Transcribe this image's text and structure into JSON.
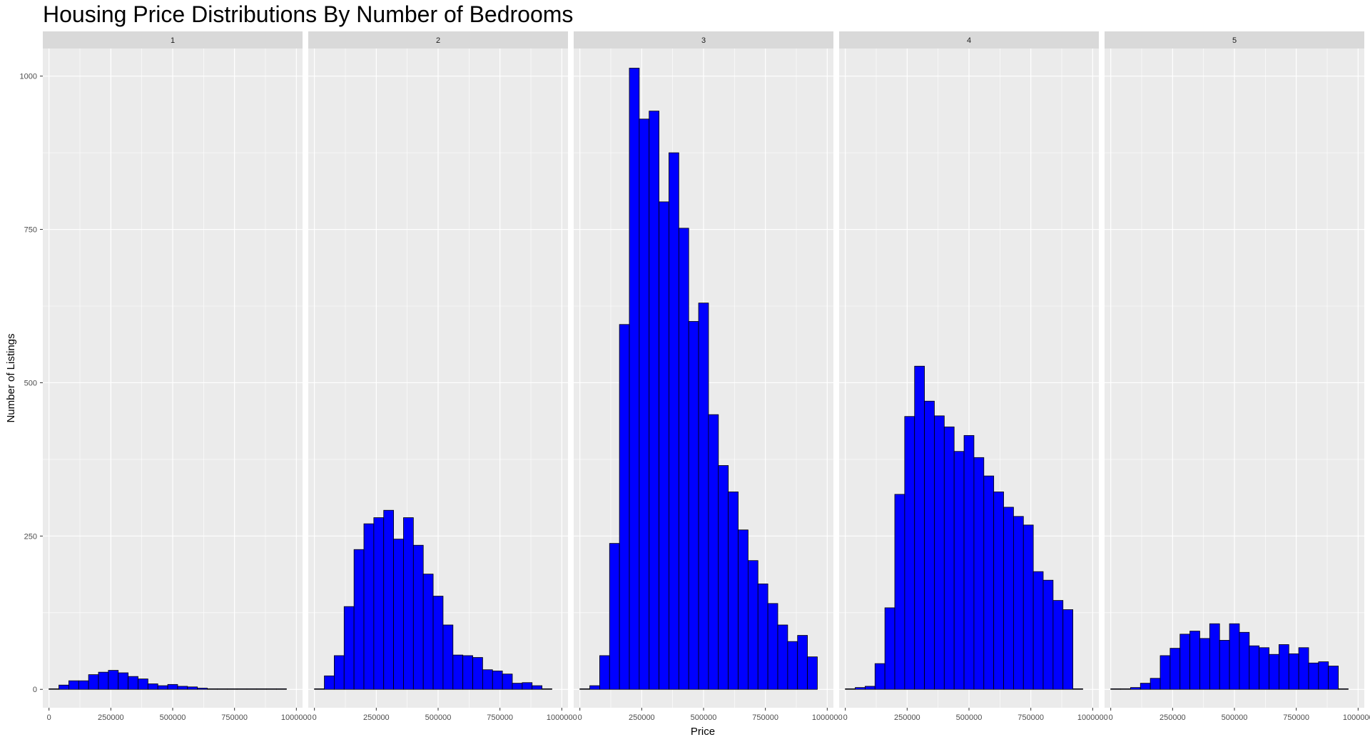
{
  "chart_data": {
    "type": "bar",
    "title": "Housing Price Distributions By Number of Bedrooms",
    "xlabel": "Price",
    "ylabel": "Number of Listings",
    "xlim": [
      -25000,
      1025000
    ],
    "ylim": [
      -30,
      1045
    ],
    "x_ticks": [
      0,
      250000,
      500000,
      750000,
      1000000
    ],
    "x_tick_labels": [
      "0",
      "250000",
      "500000",
      "750000",
      "1000000"
    ],
    "y_ticks": [
      0,
      250,
      500,
      750,
      1000
    ],
    "y_tick_labels": [
      "0",
      "250",
      "500",
      "750",
      "1000"
    ],
    "bin_centers": [
      20000,
      60000,
      100000,
      140000,
      180000,
      220000,
      260000,
      300000,
      340000,
      380000,
      420000,
      460000,
      500000,
      540000,
      580000,
      620000,
      660000,
      700000,
      740000,
      780000,
      820000,
      860000,
      900000,
      940000
    ],
    "bin_width": 40000,
    "grid": true,
    "legend": "none",
    "bar_fill": "#0000FF",
    "bar_outline": "#000000",
    "panel_background": "#EBEBEB",
    "strip_background": "#D9D9D9",
    "facets": [
      {
        "label": "1",
        "values": [
          1,
          7,
          14,
          14,
          24,
          28,
          31,
          27,
          21,
          17,
          9,
          6,
          8,
          5,
          4,
          2,
          1,
          1,
          1,
          1,
          1,
          1,
          1,
          1
        ]
      },
      {
        "label": "2",
        "values": [
          1,
          22,
          55,
          135,
          228,
          270,
          280,
          292,
          245,
          280,
          235,
          188,
          152,
          105,
          56,
          55,
          52,
          32,
          30,
          25,
          10,
          11,
          6,
          1
        ]
      },
      {
        "label": "3",
        "values": [
          1,
          6,
          55,
          238,
          595,
          1013,
          930,
          943,
          795,
          875,
          752,
          600,
          630,
          448,
          365,
          322,
          260,
          210,
          172,
          140,
          105,
          78,
          88,
          53
        ]
      },
      {
        "label": "4",
        "values": [
          1,
          3,
          5,
          42,
          133,
          318,
          445,
          527,
          470,
          446,
          428,
          388,
          414,
          378,
          348,
          322,
          297,
          282,
          268,
          192,
          178,
          145,
          130,
          1
        ]
      },
      {
        "label": "5",
        "values": [
          1,
          1,
          3,
          10,
          18,
          55,
          67,
          90,
          95,
          83,
          107,
          80,
          107,
          93,
          71,
          68,
          57,
          73,
          58,
          68,
          43,
          45,
          38,
          1
        ]
      }
    ]
  }
}
